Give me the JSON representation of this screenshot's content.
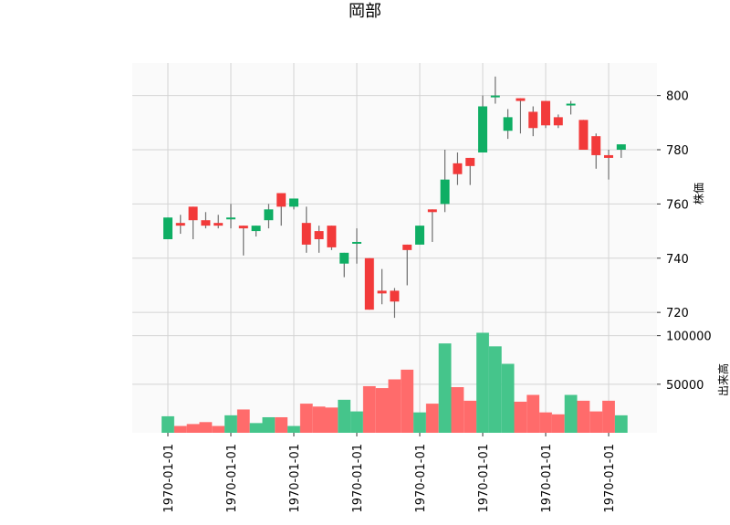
{
  "chart_data": {
    "type": "candlestick",
    "title": "岡部",
    "price_ylabel": "株価",
    "volume_ylabel": "出来高",
    "price_yticks": [
      720,
      740,
      760,
      780,
      800
    ],
    "volume_yticks": [
      50000,
      100000
    ],
    "price_ylim": [
      715,
      812
    ],
    "volume_ylim": [
      0,
      110000
    ],
    "x_tick_labels": [
      "1970-01-01",
      "1970-01-01",
      "1970-01-01",
      "1970-01-01",
      "1970-01-01",
      "1970-01-01",
      "1970-01-01",
      "1970-01-01"
    ],
    "x_tick_indices": [
      0,
      5,
      10,
      15,
      20,
      25,
      30,
      35
    ],
    "grid": true,
    "up_color": "#0fae64",
    "down_color": "#f23a3a",
    "volume_up_color": "#45c58b",
    "volume_down_color": "#ff6b6b",
    "candles": [
      {
        "open": 747,
        "high": 755,
        "low": 747,
        "close": 755
      },
      {
        "open": 753,
        "high": 756,
        "low": 749,
        "close": 752
      },
      {
        "open": 759,
        "high": 759,
        "low": 747,
        "close": 754
      },
      {
        "open": 754,
        "high": 757,
        "low": 751,
        "close": 752
      },
      {
        "open": 753,
        "high": 756,
        "low": 751,
        "close": 752
      },
      {
        "open": 755,
        "high": 760,
        "low": 751,
        "close": 755
      },
      {
        "open": 752,
        "high": 752,
        "low": 741,
        "close": 751
      },
      {
        "open": 750,
        "high": 752,
        "low": 748,
        "close": 752
      },
      {
        "open": 754,
        "high": 760,
        "low": 751,
        "close": 758
      },
      {
        "open": 764,
        "high": 764,
        "low": 752,
        "close": 759
      },
      {
        "open": 759,
        "high": 762,
        "low": 758,
        "close": 762
      },
      {
        "open": 753,
        "high": 759,
        "low": 742,
        "close": 745
      },
      {
        "open": 750,
        "high": 752,
        "low": 742,
        "close": 747
      },
      {
        "open": 752,
        "high": 752,
        "low": 743,
        "close": 744
      },
      {
        "open": 738,
        "high": 742,
        "low": 733,
        "close": 742
      },
      {
        "open": 746,
        "high": 751,
        "low": 738,
        "close": 746
      },
      {
        "open": 740,
        "high": 740,
        "low": 721,
        "close": 721
      },
      {
        "open": 728,
        "high": 736,
        "low": 723,
        "close": 727
      },
      {
        "open": 728,
        "high": 729,
        "low": 718,
        "close": 724
      },
      {
        "open": 745,
        "high": 745,
        "low": 730,
        "close": 743
      },
      {
        "open": 745,
        "high": 752,
        "low": 745,
        "close": 752
      },
      {
        "open": 758,
        "high": 758,
        "low": 746,
        "close": 757
      },
      {
        "open": 760,
        "high": 780,
        "low": 757,
        "close": 769
      },
      {
        "open": 775,
        "high": 779,
        "low": 767,
        "close": 771
      },
      {
        "open": 777,
        "high": 777,
        "low": 767,
        "close": 774
      },
      {
        "open": 779,
        "high": 800,
        "low": 779,
        "close": 796
      },
      {
        "open": 800,
        "high": 807,
        "low": 797,
        "close": 800
      },
      {
        "open": 787,
        "high": 795,
        "low": 784,
        "close": 792
      },
      {
        "open": 799,
        "high": 799,
        "low": 786,
        "close": 798
      },
      {
        "open": 794,
        "high": 796,
        "low": 785,
        "close": 788
      },
      {
        "open": 798,
        "high": 798,
        "low": 788,
        "close": 789
      },
      {
        "open": 792,
        "high": 793,
        "low": 788,
        "close": 789
      },
      {
        "open": 797,
        "high": 798,
        "low": 793,
        "close": 797
      },
      {
        "open": 791,
        "high": 791,
        "low": 780,
        "close": 780
      },
      {
        "open": 785,
        "high": 786,
        "low": 773,
        "close": 778
      },
      {
        "open": 778,
        "high": 780,
        "low": 769,
        "close": 777
      },
      {
        "open": 780,
        "high": 782,
        "low": 777,
        "close": 782
      }
    ],
    "volumes": [
      17000,
      7000,
      9000,
      11000,
      7000,
      18000,
      24000,
      10000,
      16000,
      16000,
      7000,
      30000,
      27000,
      26000,
      34000,
      22000,
      48000,
      46000,
      55000,
      65000,
      21000,
      30000,
      92000,
      47000,
      33000,
      103000,
      89000,
      71000,
      32000,
      39000,
      21000,
      19000,
      39000,
      33000,
      22000,
      33000,
      18000
    ]
  }
}
